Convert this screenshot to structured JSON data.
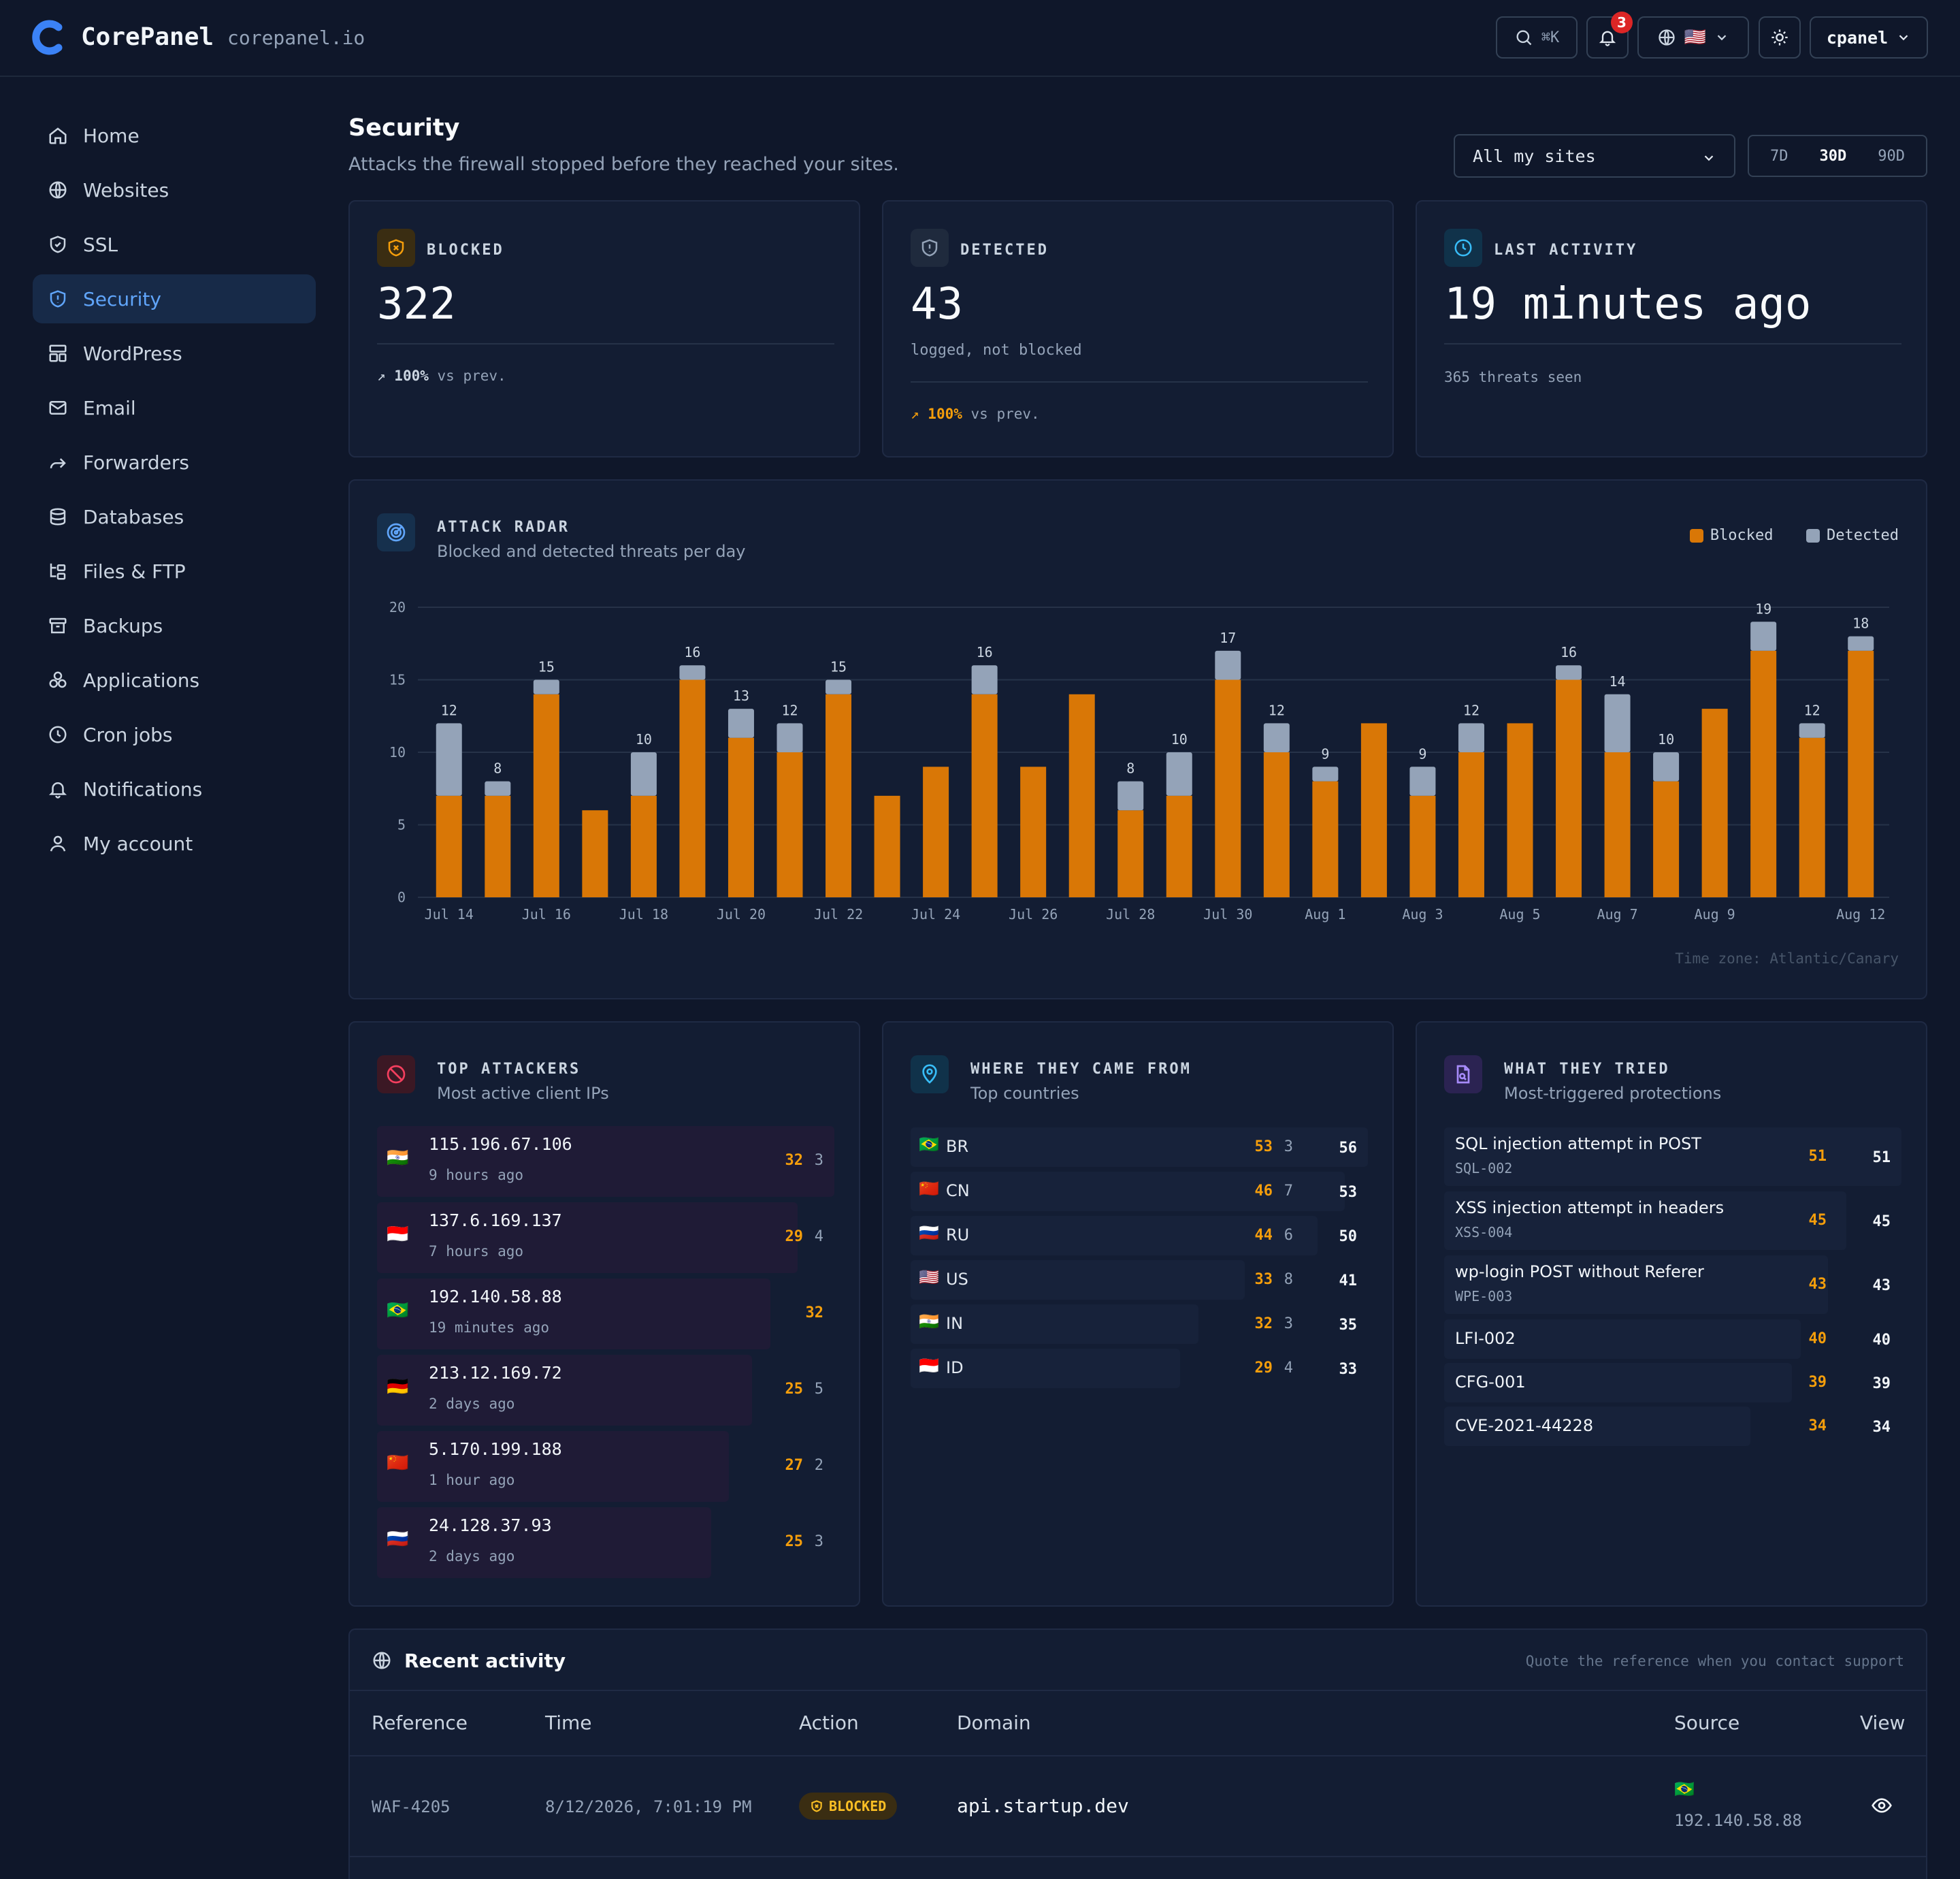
{
  "app": {
    "name": "CorePanel",
    "domain": "corepanel.io"
  },
  "header": {
    "search_shortcut": "⌘K",
    "notif_count": "3",
    "lang_flag": "🇺🇸",
    "user": "cpanel"
  },
  "sidebar": {
    "items": [
      {
        "label": "Home",
        "icon": "home-icon"
      },
      {
        "label": "Websites",
        "icon": "globe-icon"
      },
      {
        "label": "SSL",
        "icon": "shield-check-icon"
      },
      {
        "label": "Security",
        "icon": "shield-icon",
        "active": true
      },
      {
        "label": "WordPress",
        "icon": "layout-icon"
      },
      {
        "label": "Email",
        "icon": "mail-icon"
      },
      {
        "label": "Forwarders",
        "icon": "forward-icon"
      },
      {
        "label": "Databases",
        "icon": "database-icon"
      },
      {
        "label": "Files & FTP",
        "icon": "folder-tree-icon"
      },
      {
        "label": "Backups",
        "icon": "archive-icon"
      },
      {
        "label": "Applications",
        "icon": "apps-icon"
      },
      {
        "label": "Cron jobs",
        "icon": "clock-icon"
      },
      {
        "label": "Notifications",
        "icon": "bell-icon"
      },
      {
        "label": "My account",
        "icon": "user-icon"
      }
    ]
  },
  "page": {
    "title": "Security",
    "subtitle": "Attacks the firewall stopped before they reached your sites.",
    "site_filter": "All my sites",
    "ranges": [
      "7D",
      "30D",
      "90D"
    ],
    "active_range": "30D"
  },
  "stats": {
    "blocked": {
      "label": "BLOCKED",
      "value": "322",
      "delta": "100%",
      "delta_suffix": "vs prev."
    },
    "detected": {
      "label": "DETECTED",
      "value": "43",
      "note": "logged, not blocked",
      "delta": "100%",
      "delta_suffix": "vs prev."
    },
    "last": {
      "label": "LAST ACTIVITY",
      "value": "19 minutes ago",
      "note": "365 threats seen"
    }
  },
  "radar": {
    "title": "ATTACK RADAR",
    "subtitle": "Blocked and detected threats per day",
    "legend_blocked": "Blocked",
    "legend_detected": "Detected",
    "timezone": "Time zone: Atlantic/Canary"
  },
  "chart_data": {
    "type": "bar",
    "stacked": true,
    "categories": [
      "Jul 14",
      "Jul 15",
      "Jul 16",
      "Jul 17",
      "Jul 18",
      "Jul 19",
      "Jul 20",
      "Jul 21",
      "Jul 22",
      "Jul 23",
      "Jul 24",
      "Jul 25",
      "Jul 26",
      "Jul 27",
      "Jul 28",
      "Jul 29",
      "Jul 30",
      "Jul 31",
      "Aug 1",
      "Aug 2",
      "Aug 3",
      "Aug 4",
      "Aug 5",
      "Aug 6",
      "Aug 7",
      "Aug 8",
      "Aug 9",
      "Aug 10",
      "Aug 11",
      "Aug 12"
    ],
    "tick_labels": [
      "Jul 14",
      "Jul 16",
      "Jul 18",
      "Jul 20",
      "Jul 22",
      "Jul 24",
      "Jul 26",
      "Jul 28",
      "Jul 30",
      "Aug 1",
      "Aug 3",
      "Aug 5",
      "Aug 7",
      "Aug 9",
      "Aug 12"
    ],
    "series": [
      {
        "name": "Blocked",
        "color": "#d97706",
        "values": [
          7,
          7,
          14,
          6,
          7,
          15,
          11,
          10,
          14,
          7,
          9,
          14,
          9,
          14,
          6,
          7,
          15,
          10,
          8,
          12,
          7,
          10,
          12,
          15,
          10,
          8,
          13,
          17,
          11,
          17
        ]
      },
      {
        "name": "Detected",
        "color": "#94a3b8",
        "values": [
          5,
          1,
          1,
          0,
          3,
          1,
          2,
          2,
          1,
          0,
          0,
          2,
          0,
          0,
          2,
          3,
          2,
          2,
          1,
          0,
          2,
          2,
          0,
          1,
          4,
          2,
          0,
          2,
          1,
          1
        ]
      }
    ],
    "total_labels": [
      "12",
      "8",
      "15",
      "",
      "10",
      "16",
      "13",
      "12",
      "15",
      "",
      "",
      "16",
      "",
      "",
      "8",
      "10",
      "17",
      "12",
      "9",
      "",
      "9",
      "12",
      "",
      "16",
      "14",
      "10",
      "",
      "19",
      "12",
      "18"
    ],
    "yticks": [
      "0",
      "5",
      "10",
      "15",
      "20"
    ],
    "ylim": [
      0,
      20
    ],
    "grid": true,
    "legend": "top-right"
  },
  "attackers": {
    "title": "TOP ATTACKERS",
    "subtitle": "Most active client IPs",
    "rows": [
      {
        "ip": "115.196.67.106",
        "ago": "9 hours ago",
        "flag": "🇮🇳",
        "blocked": "32",
        "detected": "3",
        "share": 1.0
      },
      {
        "ip": "137.6.169.137",
        "ago": "7 hours ago",
        "flag": "🇮🇩",
        "blocked": "29",
        "detected": "4",
        "share": 0.92
      },
      {
        "ip": "192.140.58.88",
        "ago": "19 minutes ago",
        "flag": "🇧🇷",
        "blocked": "32",
        "detected": "",
        "share": 0.86
      },
      {
        "ip": "213.12.169.72",
        "ago": "2 days ago",
        "flag": "🇩🇪",
        "blocked": "25",
        "detected": "5",
        "share": 0.82
      },
      {
        "ip": "5.170.199.188",
        "ago": "1 hour ago",
        "flag": "🇨🇳",
        "blocked": "27",
        "detected": "2",
        "share": 0.77
      },
      {
        "ip": "24.128.37.93",
        "ago": "2 days ago",
        "flag": "🇷🇺",
        "blocked": "25",
        "detected": "3",
        "share": 0.73
      }
    ]
  },
  "countries": {
    "title": "WHERE THEY CAME FROM",
    "subtitle": "Top countries",
    "rows": [
      {
        "flag": "🇧🇷",
        "code": "BR",
        "blocked": "53",
        "detected": "3",
        "total": "56",
        "share": 1.0
      },
      {
        "flag": "🇨🇳",
        "code": "CN",
        "blocked": "46",
        "detected": "7",
        "total": "53",
        "share": 0.95
      },
      {
        "flag": "🇷🇺",
        "code": "RU",
        "blocked": "44",
        "detected": "6",
        "total": "50",
        "share": 0.89
      },
      {
        "flag": "🇺🇸",
        "code": "US",
        "blocked": "33",
        "detected": "8",
        "total": "41",
        "share": 0.73
      },
      {
        "flag": "🇮🇳",
        "code": "IN",
        "blocked": "32",
        "detected": "3",
        "total": "35",
        "share": 0.63
      },
      {
        "flag": "🇮🇩",
        "code": "ID",
        "blocked": "29",
        "detected": "4",
        "total": "33",
        "share": 0.59
      }
    ]
  },
  "protections": {
    "title": "WHAT THEY TRIED",
    "subtitle": "Most-triggered protections",
    "rows": [
      {
        "name": "SQL injection attempt in POST",
        "code": "SQL-002",
        "blocked": "51",
        "total": "51",
        "share": 1.0
      },
      {
        "name": "XSS injection attempt in headers",
        "code": "XSS-004",
        "blocked": "45",
        "total": "45",
        "share": 0.88
      },
      {
        "name": "wp-login POST without Referer",
        "code": "WPE-003",
        "blocked": "43",
        "total": "43",
        "share": 0.84
      },
      {
        "name": "LFI-002",
        "code": "",
        "blocked": "40",
        "total": "40",
        "share": 0.78
      },
      {
        "name": "CFG-001",
        "code": "",
        "blocked": "39",
        "total": "39",
        "share": 0.76
      },
      {
        "name": "CVE-2021-44228",
        "code": "",
        "blocked": "34",
        "total": "34",
        "share": 0.67
      }
    ]
  },
  "recent": {
    "title": "Recent activity",
    "note": "Quote the reference when you contact support",
    "columns": [
      "Reference",
      "Time",
      "Action",
      "Domain",
      "Source",
      "View"
    ],
    "rows": [
      {
        "ref": "WAF-4205",
        "time": "8/12/2026, 7:01:19 PM",
        "action": "BLOCKED",
        "domain": "api.startup.dev",
        "flag": "🇧🇷",
        "ip": "192.140.58.88"
      }
    ]
  }
}
